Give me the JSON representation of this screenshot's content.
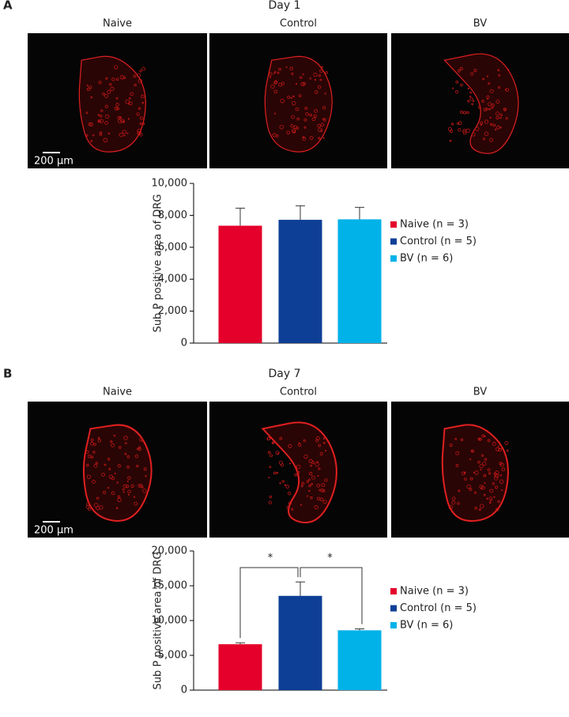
{
  "chart_data": [
    {
      "type": "bar",
      "panel_label": "A",
      "title": "Day 1",
      "image_labels": [
        "Naive",
        "Control",
        "BV"
      ],
      "scale_bar_label": "200 µm",
      "ylabel": "Sub P positive area of DRG",
      "ylim": [
        0,
        10000
      ],
      "yticks": [
        0,
        {
          "value": 2000,
          "label": "2,000"
        },
        {
          "value": 4000,
          "label": "4,000"
        },
        {
          "value": 6000,
          "label": "6,000"
        },
        {
          "value": 8000,
          "label": "8,000"
        },
        {
          "value": 10000,
          "label": "10,000"
        }
      ],
      "series": [
        {
          "name": "Naive (n = 3)",
          "color": "#e4002b",
          "values": [
            7350
          ],
          "errors": [
            1100
          ]
        },
        {
          "name": "Control (n = 5)",
          "color": "#0e3f96",
          "values": [
            7720
          ],
          "errors": [
            880
          ]
        },
        {
          "name": "BV (n = 6)",
          "color": "#00b2e8",
          "values": [
            7750
          ],
          "errors": [
            750
          ]
        }
      ],
      "legend": "right"
    },
    {
      "type": "bar",
      "panel_label": "B",
      "title": "Day 7",
      "image_labels": [
        "Naive",
        "Control",
        "BV"
      ],
      "scale_bar_label": "200 µm",
      "ylabel": "Sub P positive area of DRG",
      "ylim": [
        0,
        20000
      ],
      "yticks": [
        0,
        {
          "value": 5000,
          "label": "5,000"
        },
        {
          "value": 10000,
          "label": "10,000"
        },
        {
          "value": 15000,
          "label": "15,000"
        },
        {
          "value": 20000,
          "label": "20,000"
        }
      ],
      "series": [
        {
          "name": "Naive (n = 3)",
          "color": "#e4002b",
          "values": [
            6600
          ],
          "errors": [
            200
          ]
        },
        {
          "name": "Control (n = 5)",
          "color": "#0e3f96",
          "values": [
            13550
          ],
          "errors": [
            2000
          ]
        },
        {
          "name": "BV (n = 6)",
          "color": "#00b2e8",
          "values": [
            8600
          ],
          "errors": [
            200
          ]
        }
      ],
      "annotations": [
        "*",
        "*"
      ],
      "legend": "right"
    }
  ]
}
